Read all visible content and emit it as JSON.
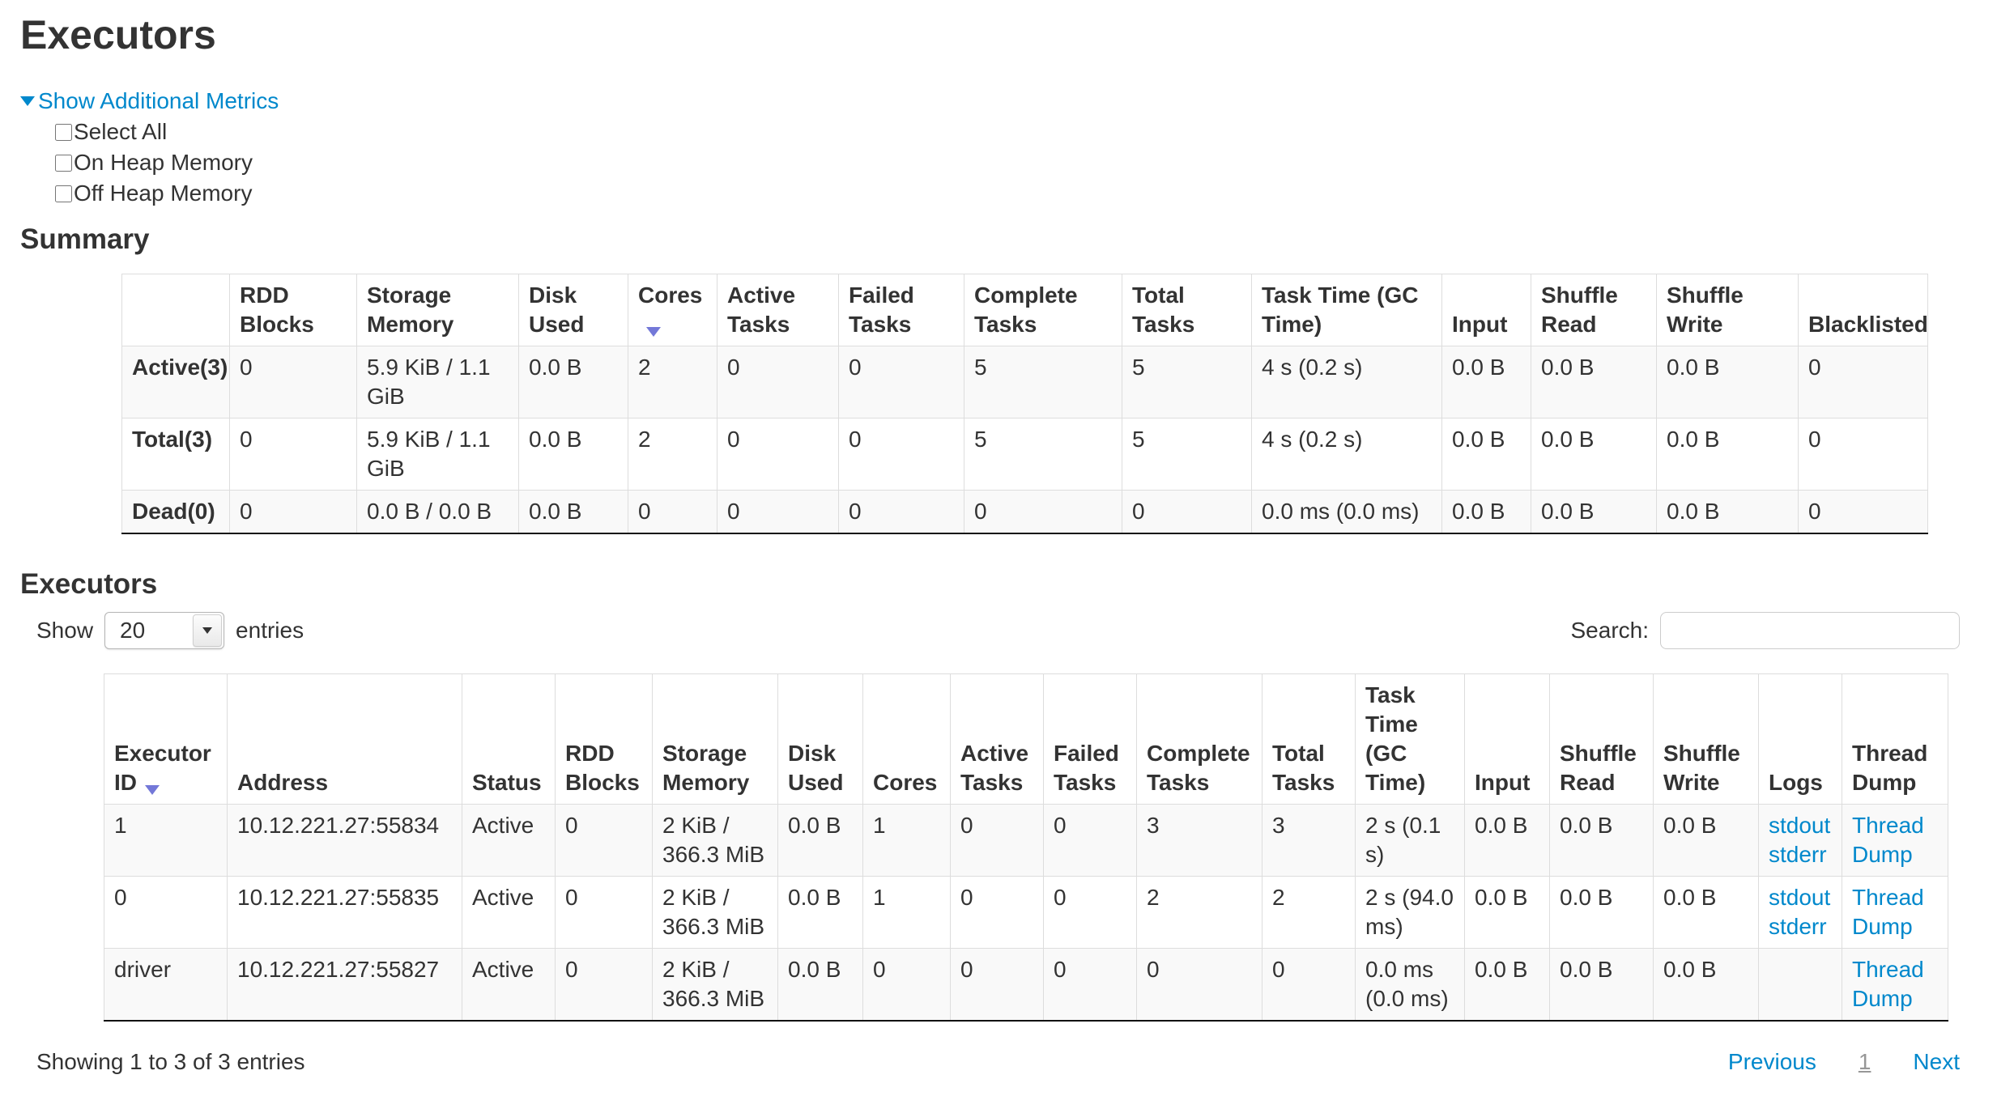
{
  "title": "Executors",
  "colors": {
    "link": "#0088cc",
    "text": "#333333",
    "table_border": "#dddddd",
    "row_stripe": "#f9f9f9",
    "table_bottom_border": "#111111",
    "sort_arrow": "#7378d8",
    "pagination_current": "#979797"
  },
  "metrics": {
    "toggle_label": "Show Additional Metrics",
    "options": [
      {
        "label": "Select All",
        "checked": false
      },
      {
        "label": "On Heap Memory",
        "checked": false
      },
      {
        "label": "Off Heap Memory",
        "checked": false
      }
    ]
  },
  "summary": {
    "heading": "Summary",
    "columns": [
      "",
      "RDD Blocks",
      "Storage Memory",
      "Disk Used",
      "Cores",
      "Active Tasks",
      "Failed Tasks",
      "Complete Tasks",
      "Total Tasks",
      "Task Time (GC Time)",
      "Input",
      "Shuffle Read",
      "Shuffle Write",
      "Blacklisted"
    ],
    "sorted_column": "Cores",
    "sort_direction": "desc",
    "rows": [
      {
        "label": "Active(3)",
        "cells": [
          "0",
          "5.9 KiB / 1.1 GiB",
          "0.0 B",
          "2",
          "0",
          "0",
          "5",
          "5",
          "4 s (0.2 s)",
          "0.0 B",
          "0.0 B",
          "0.0 B",
          "0"
        ]
      },
      {
        "label": "Total(3)",
        "cells": [
          "0",
          "5.9 KiB / 1.1 GiB",
          "0.0 B",
          "2",
          "0",
          "0",
          "5",
          "5",
          "4 s (0.2 s)",
          "0.0 B",
          "0.0 B",
          "0.0 B",
          "0"
        ]
      },
      {
        "label": "Dead(0)",
        "cells": [
          "0",
          "0.0 B / 0.0 B",
          "0.0 B",
          "0",
          "0",
          "0",
          "0",
          "0",
          "0.0 ms (0.0 ms)",
          "0.0 B",
          "0.0 B",
          "0.0 B",
          "0"
        ]
      }
    ]
  },
  "executors": {
    "heading": "Executors",
    "show_label": "Show",
    "page_size": "20",
    "entries_label": "entries",
    "search_label": "Search:",
    "search_value": "",
    "columns": [
      "Executor ID",
      "Address",
      "Status",
      "RDD Blocks",
      "Storage Memory",
      "Disk Used",
      "Cores",
      "Active Tasks",
      "Failed Tasks",
      "Complete Tasks",
      "Total Tasks",
      "Task Time (GC Time)",
      "Input",
      "Shuffle Read",
      "Shuffle Write",
      "Logs",
      "Thread Dump"
    ],
    "sorted_column": "Executor ID",
    "sort_direction": "desc",
    "rows": [
      {
        "cells": [
          "1",
          "10.12.221.27:55834",
          "Active",
          "0",
          "2 KiB / 366.3 MiB",
          "0.0 B",
          "1",
          "0",
          "0",
          "3",
          "3",
          "2 s (0.1 s)",
          "0.0 B",
          "0.0 B",
          "0.0 B"
        ],
        "logs": [
          "stdout",
          "stderr"
        ],
        "thread_dump": "Thread Dump"
      },
      {
        "cells": [
          "0",
          "10.12.221.27:55835",
          "Active",
          "0",
          "2 KiB / 366.3 MiB",
          "0.0 B",
          "1",
          "0",
          "0",
          "2",
          "2",
          "2 s (94.0 ms)",
          "0.0 B",
          "0.0 B",
          "0.0 B"
        ],
        "logs": [
          "stdout",
          "stderr"
        ],
        "thread_dump": "Thread Dump"
      },
      {
        "cells": [
          "driver",
          "10.12.221.27:55827",
          "Active",
          "0",
          "2 KiB / 366.3 MiB",
          "0.0 B",
          "0",
          "0",
          "0",
          "0",
          "0",
          "0.0 ms (0.0 ms)",
          "0.0 B",
          "0.0 B",
          "0.0 B"
        ],
        "logs": [],
        "thread_dump": "Thread Dump"
      }
    ],
    "info": "Showing 1 to 3 of 3 entries",
    "pagination": {
      "previous": "Previous",
      "current_page": "1",
      "next": "Next"
    }
  }
}
